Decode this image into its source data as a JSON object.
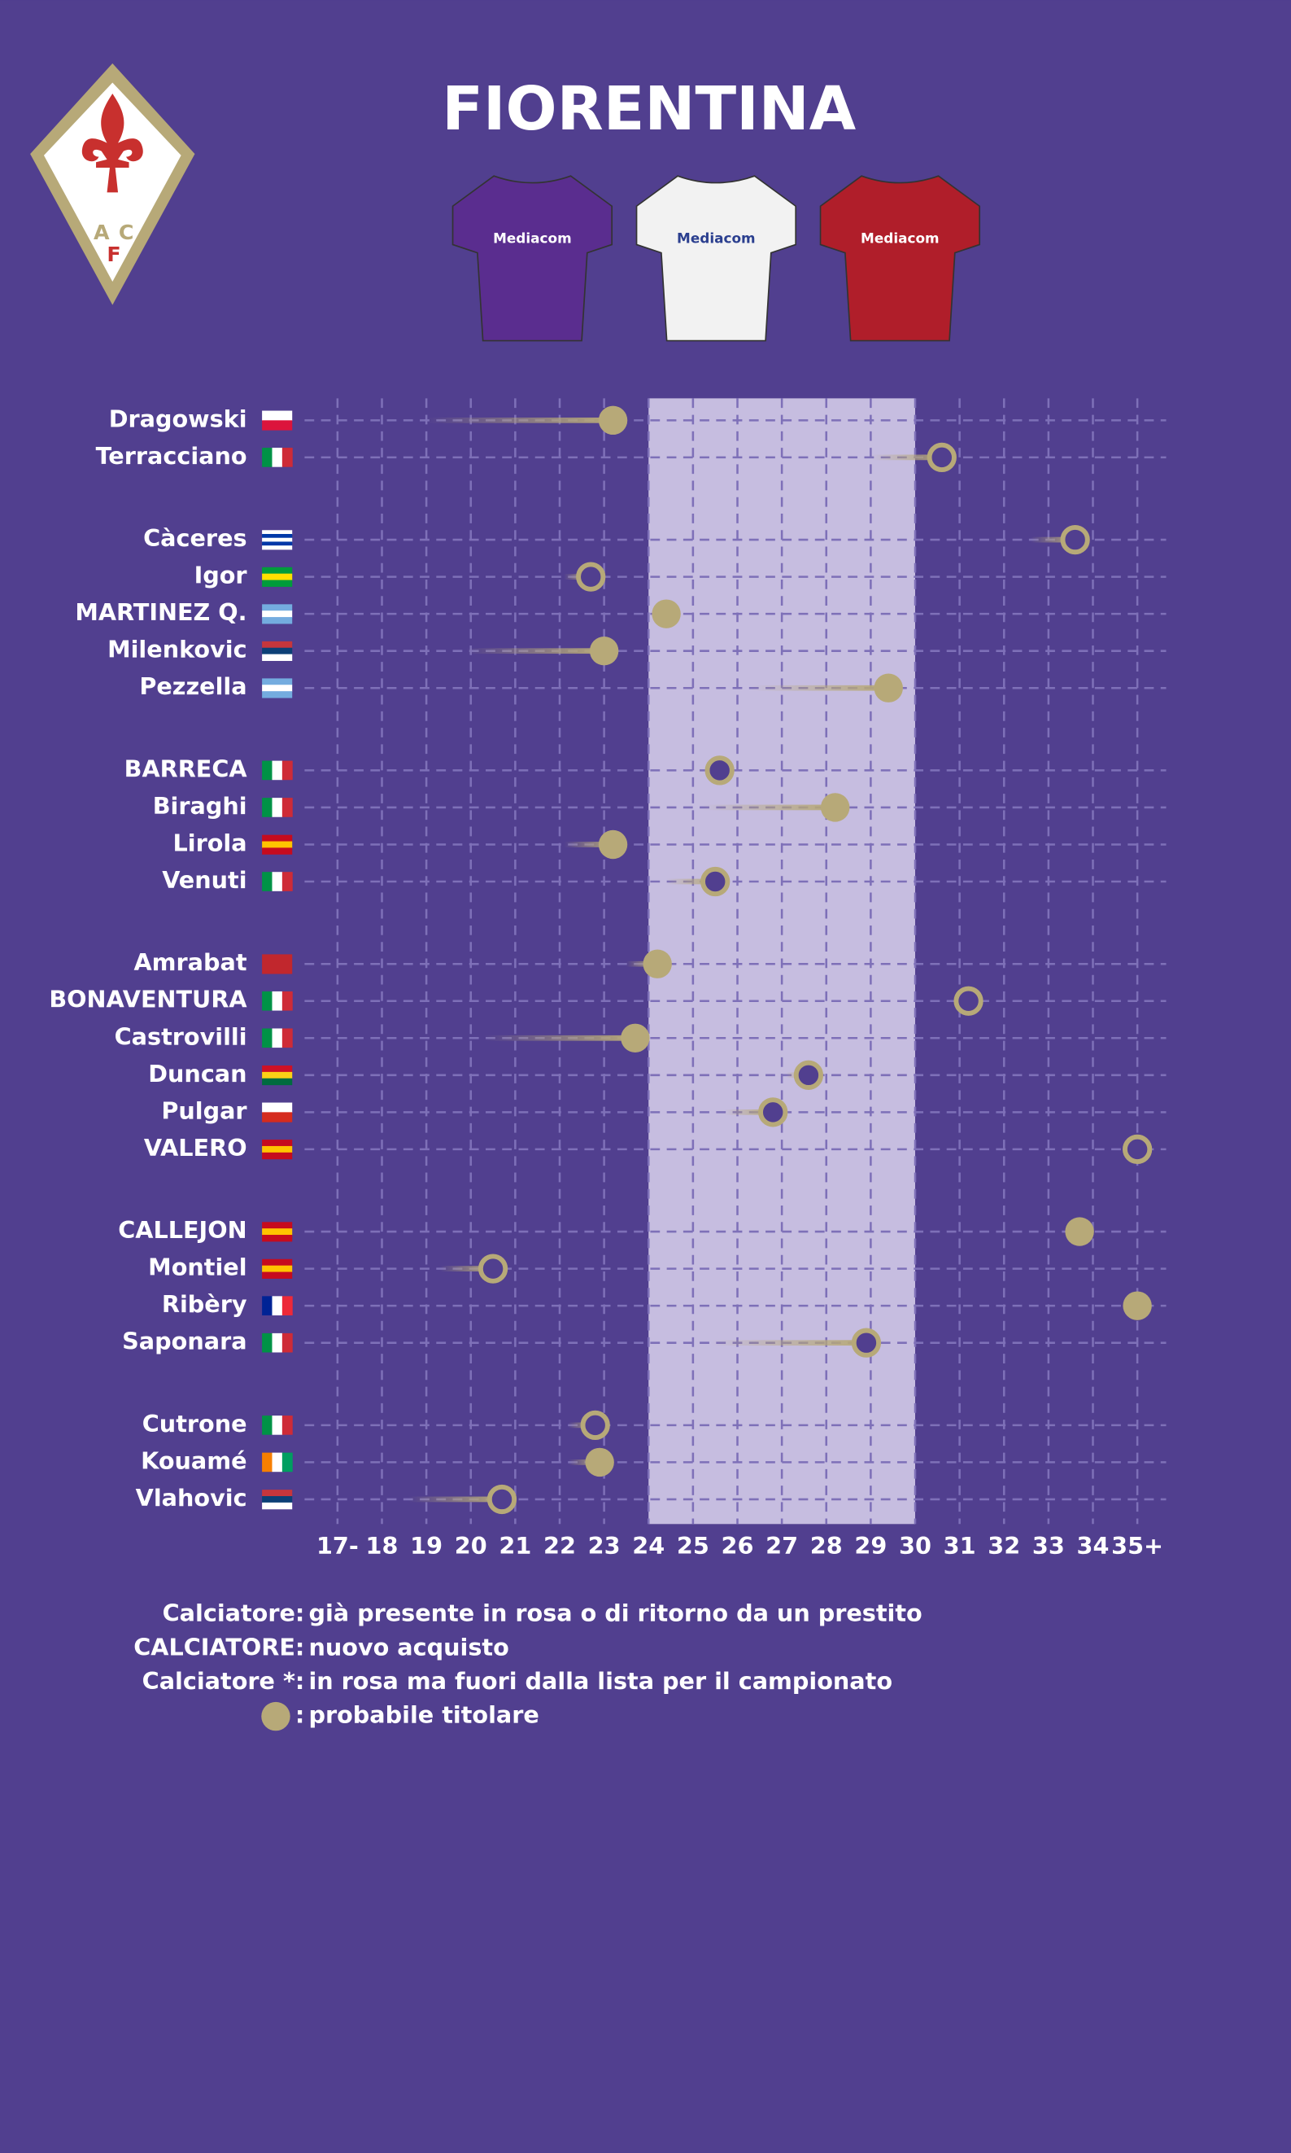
{
  "chart_data": {
    "type": "dot",
    "title": "FIORENTINA",
    "logo": {
      "letters": [
        "A",
        "C",
        "F"
      ]
    },
    "kits": [
      {
        "sponsor": "Mediacom",
        "color": "#5a2d8f"
      },
      {
        "sponsor": "Mediacom",
        "color": "#f2f2f2"
      },
      {
        "sponsor": "Mediacom",
        "color": "#b01e2a"
      }
    ],
    "background": "#513f8f",
    "marker_color": "#b7a978",
    "highlight": [
      24,
      30
    ],
    "highlight_color": "#c6bde0",
    "xlim": [
      17,
      35
    ],
    "xticks": [
      {
        "value": 17,
        "label": "17-"
      },
      18,
      19,
      20,
      21,
      22,
      23,
      24,
      25,
      26,
      27,
      28,
      29,
      30,
      31,
      32,
      33,
      34,
      {
        "value": 35,
        "label": "35+"
      }
    ],
    "grid": true,
    "groups": [
      {
        "players": [
          {
            "name": "Dragowski",
            "age": 23.2,
            "tail_start": 19.0,
            "starter": true,
            "flag": {
              "dir": "h",
              "colors": [
                "#ffffff",
                "#dc143c"
              ]
            }
          },
          {
            "name": "Terracciano",
            "age": 30.6,
            "tail_start": 29.0,
            "starter": false,
            "flag": {
              "dir": "v",
              "colors": [
                "#009246",
                "#ffffff",
                "#ce2b37"
              ]
            }
          }
        ]
      },
      {
        "players": [
          {
            "name": "Càceres",
            "age": 33.6,
            "tail_start": 32.6,
            "starter": false,
            "flag": {
              "dir": "h",
              "colors": [
                "#ffffff",
                "#0038a8",
                "#ffffff",
                "#0038a8",
                "#ffffff"
              ]
            }
          },
          {
            "name": "Igor",
            "age": 22.7,
            "tail_start": 22.1,
            "starter": false,
            "flag": {
              "dir": "h",
              "colors": [
                "#009c3b",
                "#ffdf00",
                "#009c3b"
              ]
            }
          },
          {
            "name": "MARTINEZ Q.",
            "age": 24.4,
            "tail_start": null,
            "starter": true,
            "flag": {
              "dir": "h",
              "colors": [
                "#74acdf",
                "#ffffff",
                "#74acdf"
              ]
            }
          },
          {
            "name": "Milenkovic",
            "age": 23.0,
            "tail_start": 19.9,
            "starter": true,
            "flag": {
              "dir": "h",
              "colors": [
                "#c6363c",
                "#0c4076",
                "#ffffff"
              ]
            }
          },
          {
            "name": "Pezzella",
            "age": 29.4,
            "tail_start": 26.3,
            "starter": true,
            "flag": {
              "dir": "h",
              "colors": [
                "#74acdf",
                "#ffffff",
                "#74acdf"
              ]
            }
          }
        ]
      },
      {
        "players": [
          {
            "name": "BARRECA",
            "age": 25.6,
            "tail_start": null,
            "starter": false,
            "flag": {
              "dir": "v",
              "colors": [
                "#009246",
                "#ffffff",
                "#ce2b37"
              ]
            }
          },
          {
            "name": "Biraghi",
            "age": 28.2,
            "tail_start": 25.2,
            "starter": true,
            "flag": {
              "dir": "v",
              "colors": [
                "#009246",
                "#ffffff",
                "#ce2b37"
              ]
            }
          },
          {
            "name": "Lirola",
            "age": 23.2,
            "tail_start": 22.1,
            "starter": true,
            "flag": {
              "dir": "h",
              "colors": [
                "#c60b1e",
                "#ffc400",
                "#c60b1e"
              ]
            }
          },
          {
            "name": "Venuti",
            "age": 25.5,
            "tail_start": 24.4,
            "starter": false,
            "flag": {
              "dir": "v",
              "colors": [
                "#009246",
                "#ffffff",
                "#ce2b37"
              ]
            }
          }
        ]
      },
      {
        "players": [
          {
            "name": "Amrabat",
            "age": 24.2,
            "tail_start": 23.5,
            "starter": true,
            "flag": {
              "dir": "h",
              "colors": [
                "#c1272d"
              ]
            }
          },
          {
            "name": "BONAVENTURA",
            "age": 31.2,
            "tail_start": null,
            "starter": false,
            "flag": {
              "dir": "v",
              "colors": [
                "#009246",
                "#ffffff",
                "#ce2b37"
              ]
            }
          },
          {
            "name": "Castrovilli",
            "age": 23.7,
            "tail_start": 20.3,
            "starter": true,
            "flag": {
              "dir": "v",
              "colors": [
                "#009246",
                "#ffffff",
                "#ce2b37"
              ]
            }
          },
          {
            "name": "Duncan",
            "age": 27.6,
            "tail_start": 27.1,
            "starter": false,
            "flag": {
              "dir": "h",
              "colors": [
                "#ce1126",
                "#fcd116",
                "#006b3f"
              ]
            }
          },
          {
            "name": "Pulgar",
            "age": 26.8,
            "tail_start": 25.7,
            "starter": false,
            "flag": {
              "dir": "h",
              "colors": [
                "#ffffff",
                "#d52b1e"
              ]
            }
          },
          {
            "name": "VALERO",
            "age": 35,
            "tail_start": null,
            "starter": false,
            "flag": {
              "dir": "h",
              "colors": [
                "#c60b1e",
                "#ffc400",
                "#c60b1e"
              ]
            }
          }
        ]
      },
      {
        "players": [
          {
            "name": "CALLEJON",
            "age": 33.7,
            "tail_start": null,
            "starter": true,
            "flag": {
              "dir": "h",
              "colors": [
                "#c60b1e",
                "#ffc400",
                "#c60b1e"
              ]
            }
          },
          {
            "name": "Montiel",
            "age": 20.5,
            "tail_start": 19.3,
            "starter": false,
            "flag": {
              "dir": "h",
              "colors": [
                "#c60b1e",
                "#ffc400",
                "#c60b1e"
              ]
            }
          },
          {
            "name": "Ribèry",
            "age": 35,
            "tail_start": null,
            "starter": true,
            "flag": {
              "dir": "v",
              "colors": [
                "#002395",
                "#ffffff",
                "#ed2939"
              ]
            }
          },
          {
            "name": "Saponara",
            "age": 28.9,
            "tail_start": 25.4,
            "starter": false,
            "flag": {
              "dir": "v",
              "colors": [
                "#009246",
                "#ffffff",
                "#ce2b37"
              ]
            }
          }
        ]
      },
      {
        "players": [
          {
            "name": "Cutrone",
            "age": 22.8,
            "tail_start": 22.2,
            "starter": false,
            "flag": {
              "dir": "v",
              "colors": [
                "#009246",
                "#ffffff",
                "#ce2b37"
              ]
            }
          },
          {
            "name": "Kouamé",
            "age": 22.9,
            "tail_start": 22.2,
            "starter": true,
            "flag": {
              "dir": "v",
              "colors": [
                "#f77f00",
                "#ffffff",
                "#009e60"
              ]
            }
          },
          {
            "name": "Vlahovic",
            "age": 20.7,
            "tail_start": 18.6,
            "starter": false,
            "flag": {
              "dir": "h",
              "colors": [
                "#c6363c",
                "#0c4076",
                "#ffffff"
              ]
            }
          }
        ]
      }
    ],
    "legend": [
      {
        "key": "Calciatore:",
        "text": "già presente in rosa o di ritorno da un prestito"
      },
      {
        "key": "CALCIATORE:",
        "text": "nuovo acquisto"
      },
      {
        "key": "Calciatore *:",
        "text": "in rosa ma fuori dalla lista per il campionato"
      },
      {
        "key": ":",
        "text": "probabile titolare"
      }
    ]
  }
}
